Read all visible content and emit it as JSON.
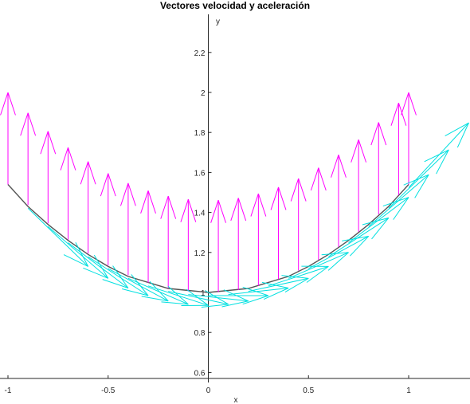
{
  "chart_data": {
    "type": "line",
    "title": "Vectores velocidad y aceleración",
    "xlabel": "x",
    "ylabel": "y",
    "xlim": [
      -1.02,
      1.3
    ],
    "ylim": [
      0.57,
      2.4
    ],
    "xticks": [
      -1,
      -0.5,
      0,
      0.5,
      1
    ],
    "xtick_labels": [
      "-1",
      "-0.5",
      "0",
      "0.5",
      "1"
    ],
    "yticks": [
      0.6,
      0.8,
      1,
      1.2,
      1.4,
      1.6,
      1.8,
      2,
      2.2
    ],
    "ytick_labels": [
      "0.6",
      "0.8",
      "1",
      "1.2",
      "1.4",
      "1.6",
      "1.8",
      "2",
      "2.2"
    ],
    "grid": false,
    "axis_location": "origin",
    "curve": {
      "color": "#555555",
      "x": [
        -1,
        -0.9,
        -0.8,
        -0.7,
        -0.6,
        -0.5,
        -0.4,
        -0.3,
        -0.2,
        -0.1,
        0,
        0.1,
        0.2,
        0.3,
        0.4,
        0.5,
        0.6,
        0.7,
        0.8,
        0.9,
        1
      ],
      "y": [
        1.54,
        1.43,
        1.34,
        1.26,
        1.19,
        1.13,
        1.08,
        1.05,
        1.02,
        1.01,
        1.0,
        1.01,
        1.02,
        1.05,
        1.08,
        1.13,
        1.19,
        1.26,
        1.34,
        1.43,
        1.54
      ]
    },
    "acceleration_vectors": {
      "color": "#ff00ff",
      "points_x": [
        -1,
        -0.9,
        -0.8,
        -0.7,
        -0.6,
        -0.5,
        -0.4,
        -0.3,
        -0.2,
        -0.1,
        0.05,
        0.15,
        0.25,
        0.35,
        0.45,
        0.55,
        0.65,
        0.75,
        0.85,
        0.95,
        1
      ],
      "dy": 0.46
    },
    "velocity_vectors": {
      "color": "#00e0e0",
      "points_x": [
        -0.9,
        -0.8,
        -0.7,
        -0.6,
        -0.5,
        -0.4,
        -0.3,
        -0.2,
        -0.1,
        0.0,
        0.1,
        0.2,
        0.3,
        0.4,
        0.5,
        0.6,
        0.7,
        0.8,
        0.9,
        1.0
      ],
      "dx": 0.3
    }
  }
}
